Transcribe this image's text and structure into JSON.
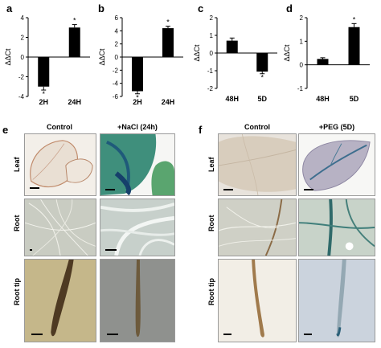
{
  "chart_data": [
    {
      "type": "bar",
      "panel": "a",
      "ylabel": "ΔΔCt",
      "categories": [
        "2H",
        "24H"
      ],
      "values": [
        -3.0,
        3.0
      ],
      "errors": [
        0.35,
        0.3
      ],
      "significance": [
        "*",
        "*"
      ],
      "ylim": [
        -4,
        4
      ],
      "yticks": [
        "-4",
        "-2",
        "0",
        "2",
        "4"
      ],
      "ytick_values": [
        -4,
        -2,
        0,
        2,
        4
      ]
    },
    {
      "type": "bar",
      "panel": "b",
      "ylabel": "ΔΔCt",
      "categories": [
        "2H",
        "24H"
      ],
      "values": [
        -5.2,
        4.4
      ],
      "errors": [
        0.4,
        0.3
      ],
      "significance": [
        "*",
        "*"
      ],
      "ylim": [
        -6,
        6
      ],
      "yticks": [
        "-6",
        "-4",
        "-2",
        "0",
        "2",
        "4",
        "6"
      ],
      "ytick_values": [
        -6,
        -4,
        -2,
        0,
        2,
        4,
        6
      ]
    },
    {
      "type": "bar",
      "panel": "c",
      "ylabel": "ΔΔCt",
      "categories": [
        "48H",
        "5D"
      ],
      "values": [
        0.7,
        -1.05
      ],
      "errors": [
        0.15,
        0.12
      ],
      "significance": [
        "",
        "*"
      ],
      "ylim": [
        -2,
        2
      ],
      "yticks": [
        "-2",
        "-1",
        "0",
        "1",
        "2"
      ],
      "ytick_values": [
        -2,
        -1,
        0,
        1,
        2
      ]
    },
    {
      "type": "bar",
      "panel": "d",
      "ylabel": "ΔΔCt",
      "categories": [
        "48H",
        "5D"
      ],
      "values": [
        0.25,
        1.6
      ],
      "errors": [
        0.05,
        0.15
      ],
      "significance": [
        "",
        "*"
      ],
      "ylim": [
        -1,
        2
      ],
      "yticks": [
        "-1",
        "0",
        "1",
        "2"
      ],
      "ytick_values": [
        -1,
        0,
        1,
        2
      ]
    }
  ],
  "figure_e": {
    "label": "e",
    "columns": [
      "Control",
      "+NaCl (24h)"
    ],
    "rows": [
      "Leaf",
      "Root",
      "Root tip"
    ]
  },
  "figure_f": {
    "label": "f",
    "columns": [
      "Control",
      "+PEG (5D)"
    ],
    "rows": [
      "Leaf",
      "Root",
      "Root tip"
    ]
  }
}
